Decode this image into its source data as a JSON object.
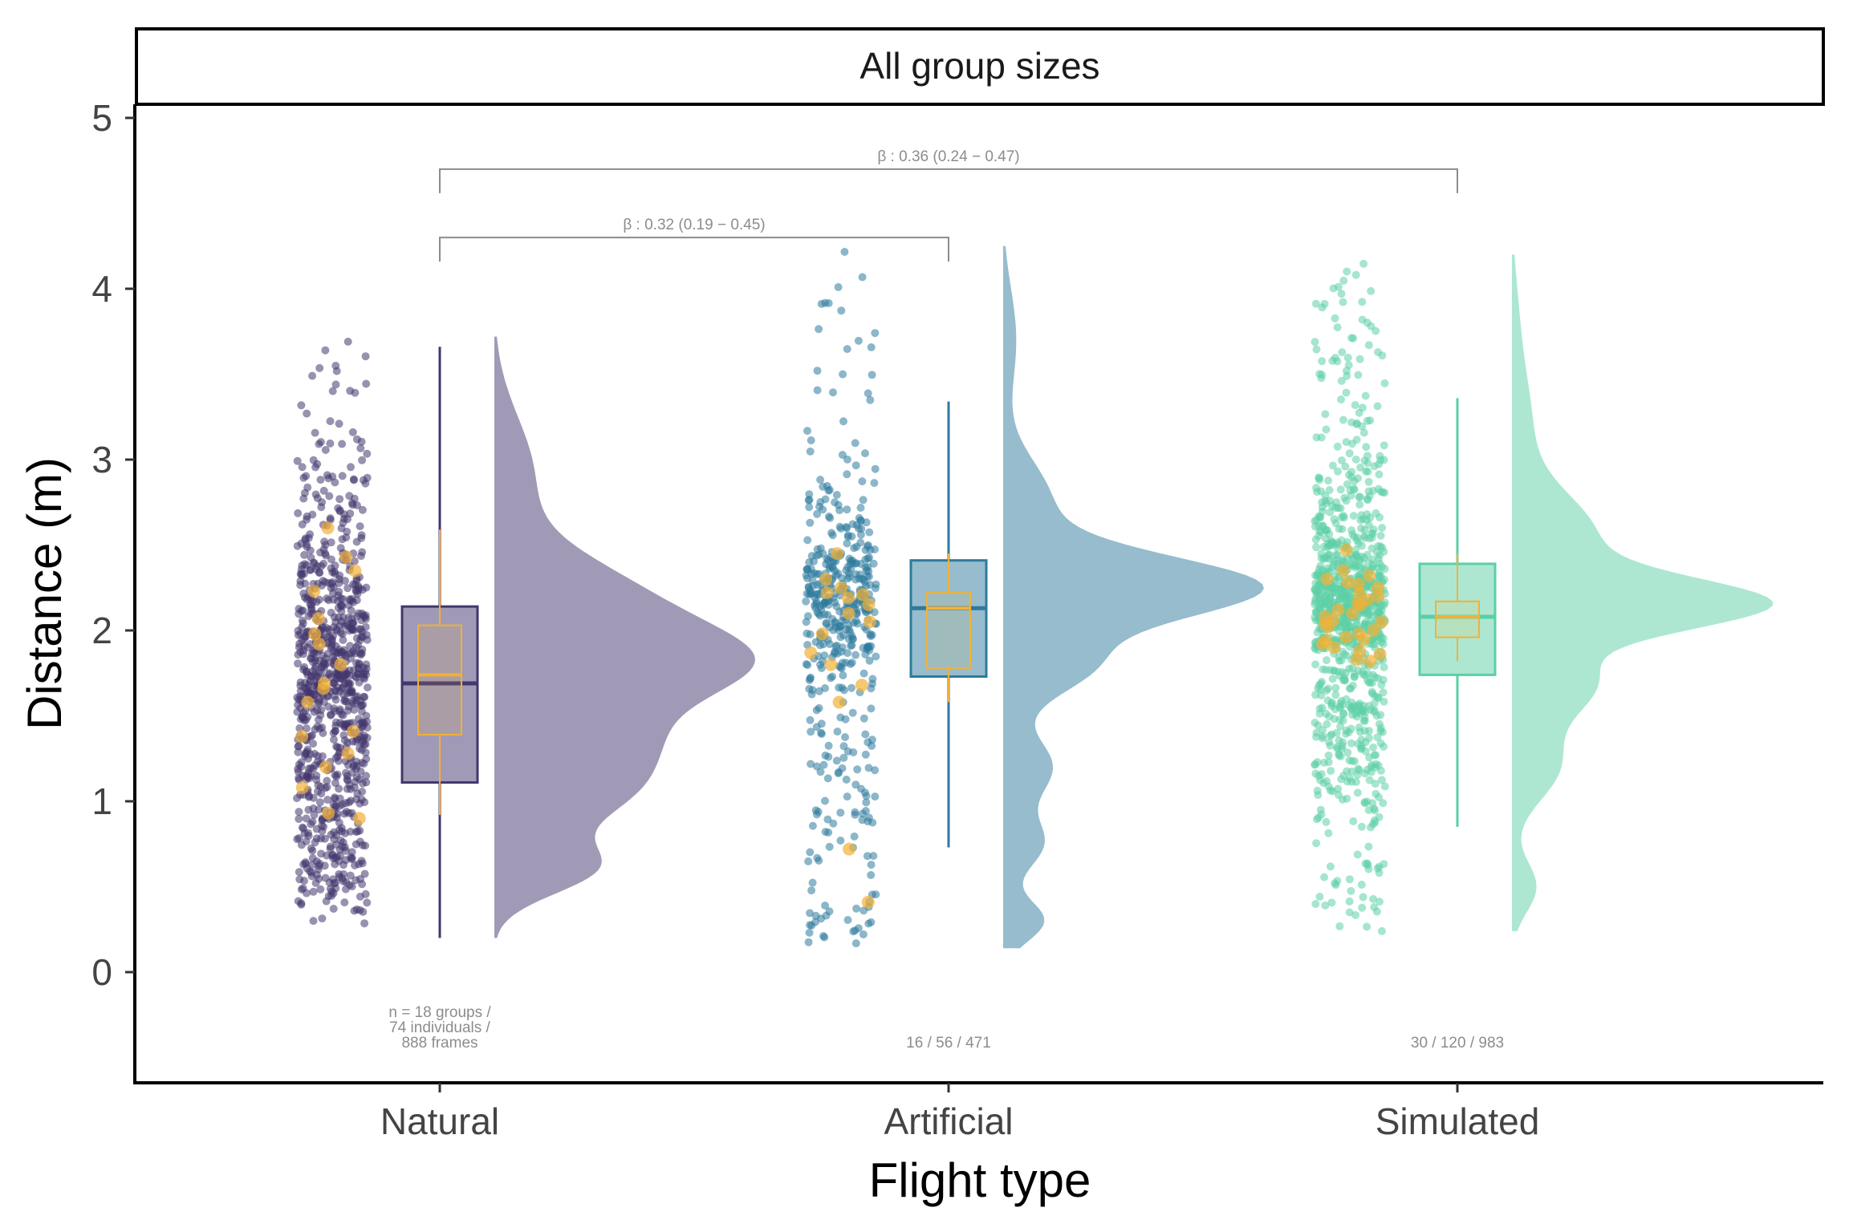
{
  "chart_data": {
    "type": "raincloud",
    "panel_title": "All group sizes",
    "xlabel": "Flight type",
    "ylabel": "Distance (m)",
    "ylim": [
      -0.65,
      5.1
    ],
    "y_ticks": [
      0,
      1,
      2,
      3,
      4,
      5
    ],
    "y_tick_labels": [
      "0",
      "1",
      "2",
      "3",
      "4",
      "5"
    ],
    "grid": false,
    "categories": [
      "Natural",
      "Artificial",
      "Simulated"
    ],
    "series": [
      {
        "category": "Natural",
        "color": "#44366e",
        "box": {
          "min": 0.2,
          "q1": 1.11,
          "median": 1.69,
          "q3": 2.14,
          "max": 3.66
        },
        "group_box": {
          "min": 0.92,
          "q1": 1.39,
          "median": 1.74,
          "q3": 2.03,
          "max": 2.59
        },
        "n_points": 888,
        "data_range": [
          0.2,
          3.72
        ],
        "density_modes": [
          {
            "mu": 0.6,
            "sigma": 0.15,
            "w": 0.1
          },
          {
            "mu": 1.0,
            "sigma": 0.2,
            "w": 0.14
          },
          {
            "mu": 1.35,
            "sigma": 0.22,
            "w": 0.2
          },
          {
            "mu": 1.8,
            "sigma": 0.22,
            "w": 0.34
          },
          {
            "mu": 2.2,
            "sigma": 0.25,
            "w": 0.22
          },
          {
            "mu": 2.9,
            "sigma": 0.35,
            "w": 0.1
          }
        ],
        "group_means": [
          2.6,
          2.43,
          2.35,
          2.23,
          2.07,
          1.98,
          1.92,
          1.8,
          1.69,
          1.66,
          1.58,
          1.41,
          1.38,
          1.28,
          1.2,
          1.08,
          0.93,
          0.9
        ],
        "n_label": "n = 18 groups /\n74 individuals /\n888 frames"
      },
      {
        "category": "Artificial",
        "color": "#2e7a9c",
        "box": {
          "min": 0.73,
          "q1": 1.73,
          "median": 2.13,
          "q3": 2.41,
          "max": 3.34
        },
        "group_box": {
          "min": 1.58,
          "q1": 1.78,
          "median": 2.13,
          "q3": 2.22,
          "max": 2.45
        },
        "n_points": 471,
        "data_range": [
          0.14,
          4.25
        ],
        "density_modes": [
          {
            "mu": 0.3,
            "sigma": 0.12,
            "w": 0.05
          },
          {
            "mu": 0.75,
            "sigma": 0.15,
            "w": 0.06
          },
          {
            "mu": 1.2,
            "sigma": 0.18,
            "w": 0.09
          },
          {
            "mu": 1.8,
            "sigma": 0.18,
            "w": 0.16
          },
          {
            "mu": 2.25,
            "sigma": 0.18,
            "w": 0.46
          },
          {
            "mu": 2.75,
            "sigma": 0.25,
            "w": 0.12
          },
          {
            "mu": 3.7,
            "sigma": 0.3,
            "w": 0.04
          }
        ],
        "group_means": [
          2.45,
          2.3,
          2.25,
          2.21,
          2.19,
          2.15,
          2.1,
          1.98,
          1.87,
          1.8,
          1.68,
          1.58,
          0.72,
          0.41,
          2.22,
          2.05
        ],
        "n_label": "16 / 56 / 471"
      },
      {
        "category": "Simulated",
        "color": "#5ccfa5",
        "box": {
          "min": 0.85,
          "q1": 1.74,
          "median": 2.08,
          "q3": 2.39,
          "max": 3.36
        },
        "group_box": {
          "min": 1.82,
          "q1": 1.96,
          "median": 2.08,
          "q3": 2.17,
          "max": 2.45
        },
        "n_points": 983,
        "data_range": [
          0.24,
          4.2
        ],
        "density_modes": [
          {
            "mu": 0.5,
            "sigma": 0.15,
            "w": 0.04
          },
          {
            "mu": 1.2,
            "sigma": 0.2,
            "w": 0.1
          },
          {
            "mu": 1.7,
            "sigma": 0.2,
            "w": 0.18
          },
          {
            "mu": 2.15,
            "sigma": 0.15,
            "w": 0.38
          },
          {
            "mu": 2.55,
            "sigma": 0.25,
            "w": 0.22
          },
          {
            "mu": 3.2,
            "sigma": 0.3,
            "w": 0.06
          },
          {
            "mu": 3.8,
            "sigma": 0.3,
            "w": 0.02
          }
        ],
        "group_means": [
          2.47,
          2.32,
          2.3,
          2.28,
          2.25,
          2.22,
          2.2,
          2.18,
          2.15,
          2.12,
          2.1,
          2.08,
          2.06,
          2.04,
          2.02,
          2.0,
          1.98,
          1.96,
          1.94,
          1.92,
          1.9,
          1.88,
          1.86,
          1.83,
          1.82,
          2.27,
          2.16,
          2.05,
          1.95,
          2.35
        ],
        "n_label": "30 / 120 / 983"
      }
    ],
    "group_point_color": "#f2b136",
    "annotations": [
      {
        "from": "Natural",
        "to": "Simulated",
        "y": 4.7,
        "label": "β : 0.36 (0.24 − 0.47)"
      },
      {
        "from": "Natural",
        "to": "Artificial",
        "y": 4.3,
        "label": "β : 0.32 (0.19 − 0.45)"
      }
    ]
  }
}
